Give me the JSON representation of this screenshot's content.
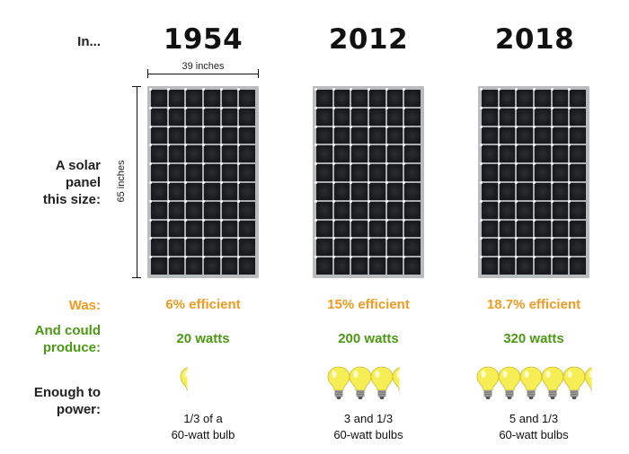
{
  "labels": {
    "in": "In...",
    "panel_line1": "A solar",
    "panel_line2": "panel",
    "panel_line3": "this size:",
    "was": "Was:",
    "produce_line1": "And could",
    "produce_line2": "produce:",
    "power_line1": "Enough to",
    "power_line2": "power:"
  },
  "dimensions": {
    "width": "39 inches",
    "height": "65 inches"
  },
  "columns": [
    {
      "year": "1954",
      "efficiency": "6% efficient",
      "watts": "20 watts",
      "bulbs_line1": "1/3 of a",
      "bulbs_line2": "60-watt bulb",
      "bulb_count": 0.33
    },
    {
      "year": "2012",
      "efficiency": "15% efficient",
      "watts": "200 watts",
      "bulbs_line1": "3 and 1/3",
      "bulbs_line2": "60-watt bulbs",
      "bulb_count": 3.33
    },
    {
      "year": "2018",
      "efficiency": "18.7% efficient",
      "watts": "320 watts",
      "bulbs_line1": "5 and 1/3",
      "bulbs_line2": "60-watt bulbs",
      "bulb_count": 5.33
    }
  ],
  "colors": {
    "efficiency": "#f39a1e",
    "watts": "#4a9a12",
    "bulb": "#f7ee55"
  },
  "icons": {
    "bulb": "light-bulb-icon",
    "panel": "solar-panel-icon"
  }
}
